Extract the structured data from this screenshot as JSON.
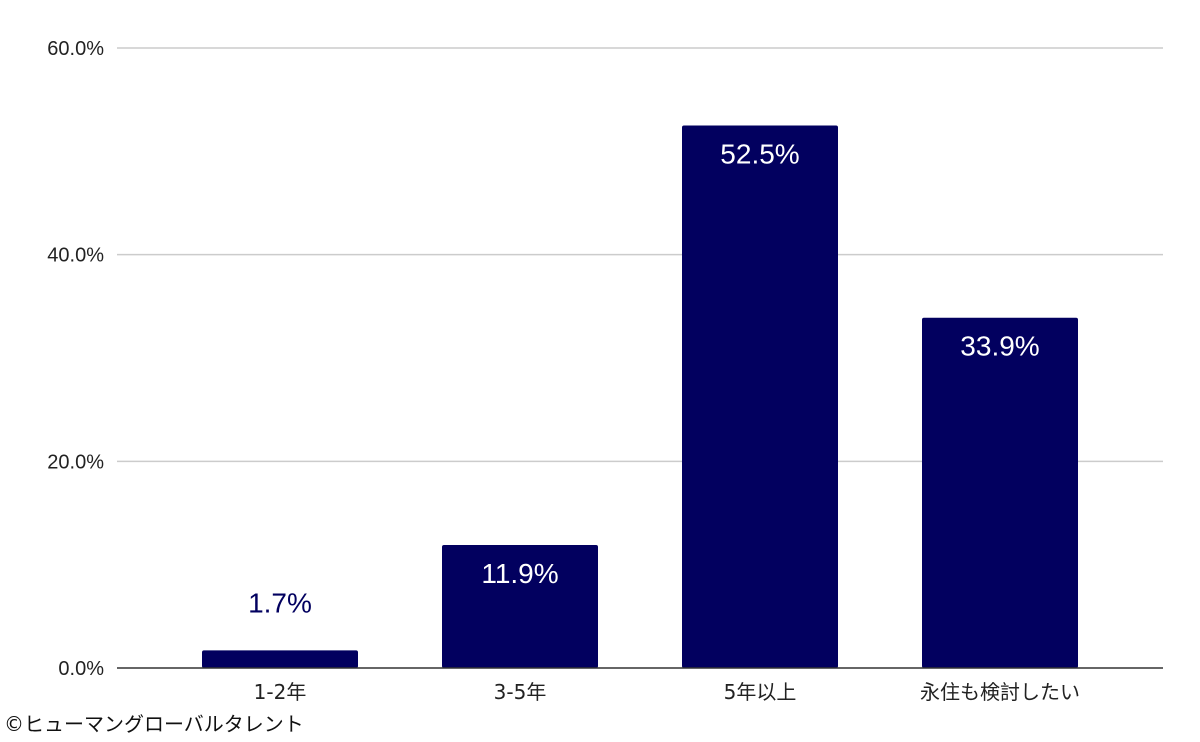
{
  "chart_data": {
    "type": "bar",
    "categories": [
      "1-2年",
      "3-5年",
      "5年以上",
      "永住も検討したい"
    ],
    "values": [
      1.7,
      11.9,
      52.5,
      33.9
    ],
    "data_labels": [
      "1.7%",
      "11.9%",
      "52.5%",
      "33.9%"
    ],
    "yticks": [
      "0.0%",
      "20.0%",
      "40.0%",
      "60.0%"
    ],
    "ytick_values": [
      0,
      20,
      40,
      60
    ],
    "ylim": [
      0,
      60
    ],
    "grid": true,
    "legend": "none",
    "title": "",
    "xlabel": "",
    "ylabel": "",
    "colors": {
      "bar": "#02005f",
      "label_inside": "#ffffff",
      "label_outside": "#02005f",
      "grid": "#cccccc",
      "axis": "#333333"
    }
  },
  "footer": {
    "credit": "©ヒューマングローバルタレント"
  }
}
